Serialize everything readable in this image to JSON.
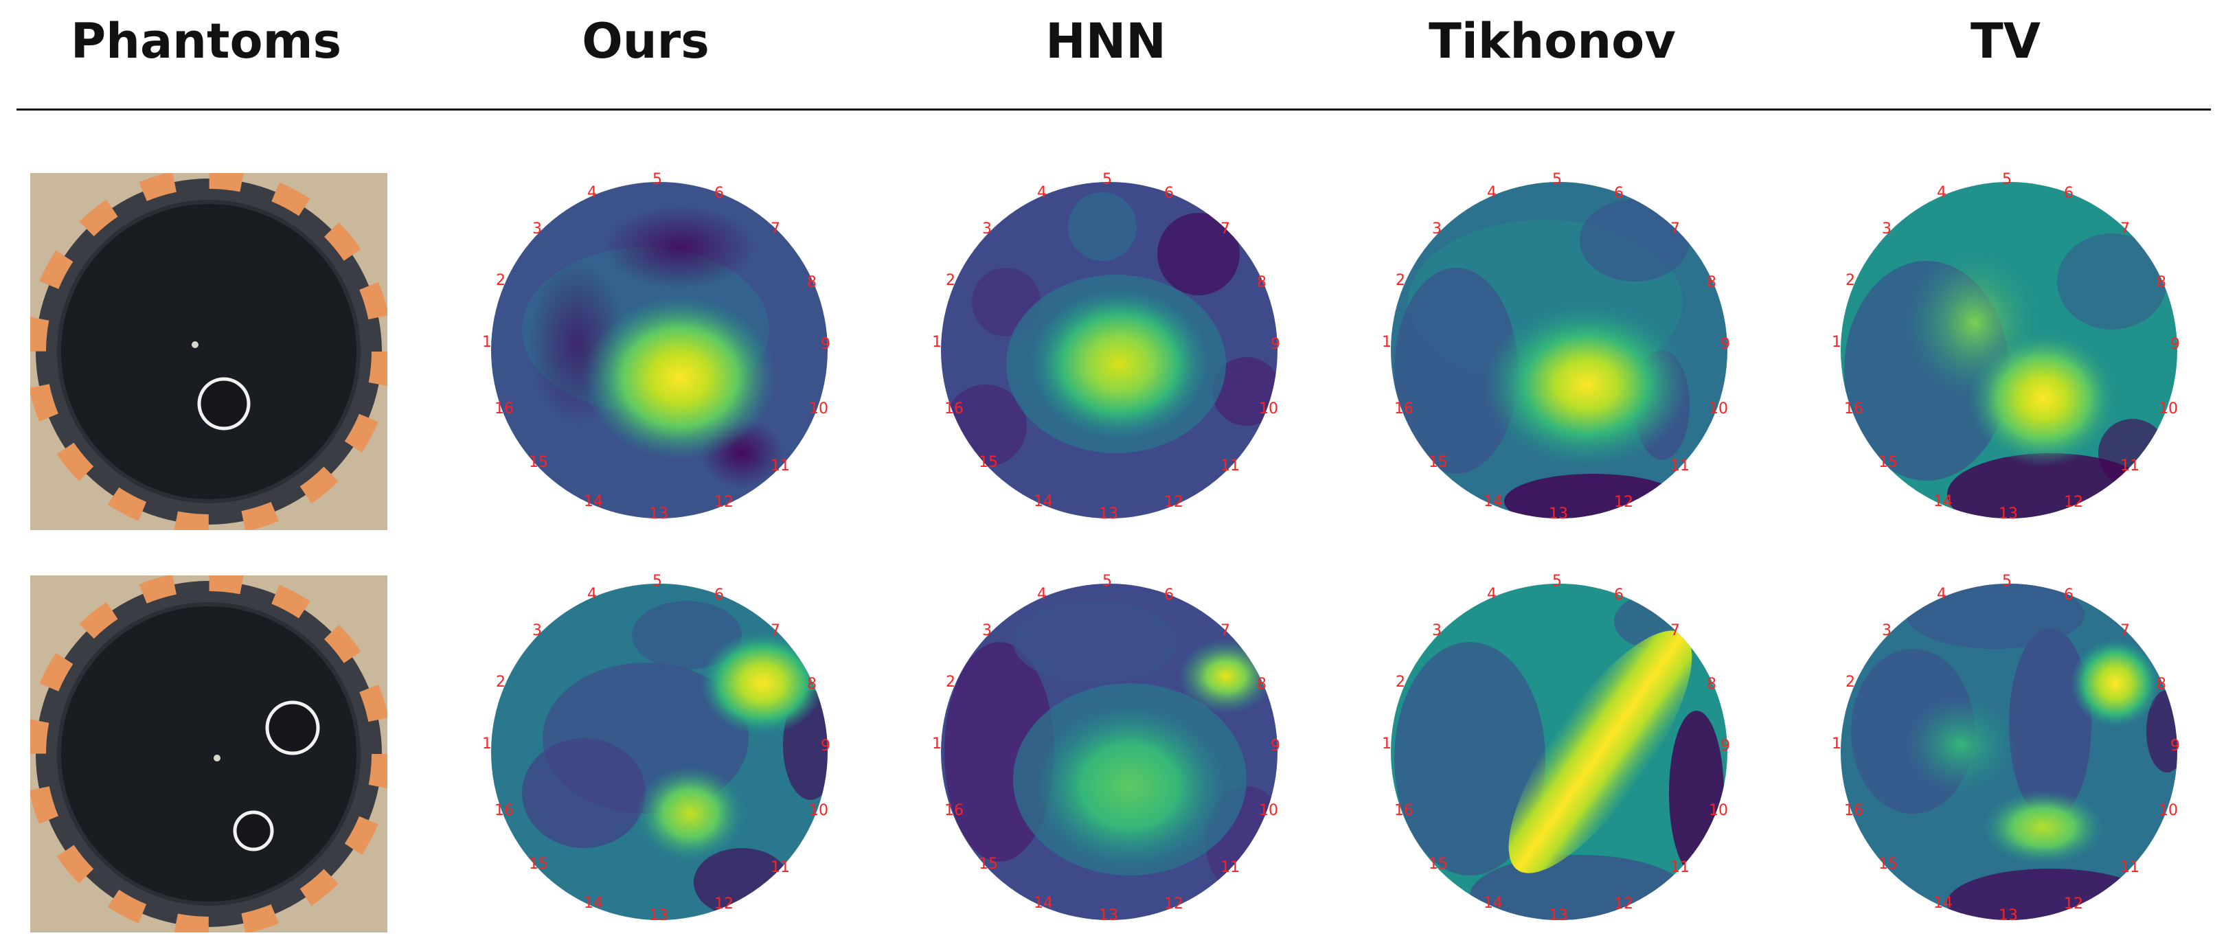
{
  "headers": {
    "phantoms": "Phantoms",
    "ours": "Ours",
    "hnn": "HNN",
    "tikhonov": "Tikhonov",
    "tv": "TV"
  },
  "electrode_labels": [
    "1",
    "2",
    "3",
    "4",
    "5",
    "6",
    "7",
    "8",
    "9",
    "10",
    "11",
    "12",
    "13",
    "14",
    "15",
    "16"
  ],
  "colormap": [
    "#440154",
    "#3b528b",
    "#21918c",
    "#5ec962",
    "#fde725"
  ],
  "colors": {
    "electrode_label": "#ff2020",
    "tank_ring_orange": "#e8955c",
    "tank_ring_dark": "#4a4d55",
    "tank_interior": "#191c20"
  }
}
